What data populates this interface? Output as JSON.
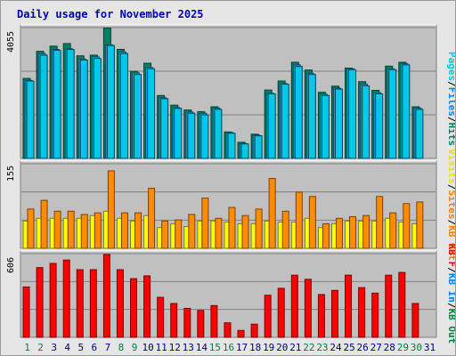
{
  "title": "Daily usage for November 2025",
  "colors": {
    "pages": "#00c8e6",
    "files": "#00a8d8",
    "hits": "#008060",
    "visits": "#ffff00",
    "sites": "#ff8c00",
    "kbout": "#ff8000",
    "kbin": "#0080ff",
    "kbf": "#ff0000",
    "weekend": "#008040",
    "weekday": "#000080"
  },
  "legend": {
    "top": [
      {
        "text": "Pages",
        "color": "#00c8e6"
      },
      {
        "text": "Files",
        "color": "#0080ff"
      },
      {
        "text": "Hits",
        "color": "#008060"
      }
    ],
    "middle": [
      {
        "text": "Visits",
        "color": "#e6e600"
      },
      {
        "text": "Sites",
        "color": "#ff8000"
      },
      {
        "text": "KB Out",
        "color": "#ff8000"
      }
    ],
    "bottom": [
      {
        "text": "KB F",
        "color": "#ff0000"
      },
      {
        "text": "KB In",
        "color": "#0080ff"
      },
      {
        "text": "KB Out",
        "color": "#008040"
      }
    ]
  },
  "chart_data": [
    {
      "type": "bar",
      "panel": "top",
      "ymax_label": "4055",
      "ylim": [
        0,
        4055
      ],
      "categories": [
        "1",
        "2",
        "3",
        "4",
        "5",
        "6",
        "7",
        "8",
        "9",
        "10",
        "11",
        "12",
        "13",
        "14",
        "15",
        "16",
        "17",
        "18",
        "19",
        "20",
        "21",
        "22",
        "23",
        "24",
        "25",
        "26",
        "27",
        "28",
        "29",
        "30",
        "31"
      ],
      "weekend_days": [
        "1",
        "2",
        "8",
        "9",
        "15",
        "16",
        "22",
        "23",
        "29",
        "30"
      ],
      "series": [
        {
          "name": "Hits",
          "values": [
            2480,
            3320,
            3480,
            3560,
            3180,
            3200,
            4040,
            3380,
            2700,
            2950,
            1950,
            1650,
            1500,
            1450,
            1600,
            820,
            500,
            750,
            2120,
            2400,
            2980,
            2740,
            2050,
            2240,
            2800,
            2380,
            2110,
            2860,
            2980,
            1600,
            0
          ]
        },
        {
          "name": "Files",
          "values": [
            2420,
            3250,
            3380,
            3400,
            3080,
            3150,
            3520,
            3300,
            2650,
            2820,
            1880,
            1580,
            1440,
            1400,
            1560,
            800,
            460,
            720,
            2020,
            2320,
            2900,
            2640,
            1990,
            2180,
            2780,
            2300,
            2040,
            2780,
            2940,
            1560,
            0
          ]
        },
        {
          "name": "Pages",
          "values": [
            2400,
            3200,
            3350,
            3380,
            3050,
            3100,
            3500,
            3250,
            2600,
            2780,
            1850,
            1550,
            1400,
            1350,
            1520,
            780,
            450,
            700,
            2000,
            2300,
            2850,
            2600,
            1950,
            2150,
            2750,
            2250,
            2000,
            2750,
            2900,
            1520,
            0
          ]
        }
      ],
      "grid": true
    },
    {
      "type": "bar",
      "panel": "middle",
      "ymax_label": "155",
      "ylim": [
        0,
        155
      ],
      "series": [
        {
          "name": "Visits",
          "values": [
            50,
            55,
            55,
            55,
            55,
            60,
            68,
            55,
            50,
            60,
            38,
            45,
            40,
            50,
            50,
            48,
            45,
            45,
            50,
            48,
            48,
            55,
            38,
            45,
            50,
            50,
            50,
            55,
            48,
            45,
            0
          ]
        },
        {
          "name": "Sites",
          "values": [
            72,
            88,
            68,
            68,
            62,
            65,
            142,
            65,
            65,
            110,
            50,
            52,
            62,
            92,
            55,
            75,
            60,
            72,
            128,
            68,
            103,
            95,
            45,
            55,
            58,
            60,
            95,
            65,
            82,
            85,
            0
          ]
        }
      ],
      "grid": true
    },
    {
      "type": "bar",
      "panel": "bottom",
      "ymax_label": "606",
      "ylim": [
        0,
        606
      ],
      "series": [
        {
          "name": "KB F",
          "values": [
            365,
            505,
            535,
            560,
            490,
            490,
            600,
            490,
            425,
            445,
            290,
            245,
            210,
            195,
            230,
            105,
            50,
            95,
            305,
            355,
            450,
            420,
            310,
            340,
            450,
            360,
            320,
            450,
            470,
            245,
            0
          ]
        }
      ],
      "grid": true
    }
  ]
}
